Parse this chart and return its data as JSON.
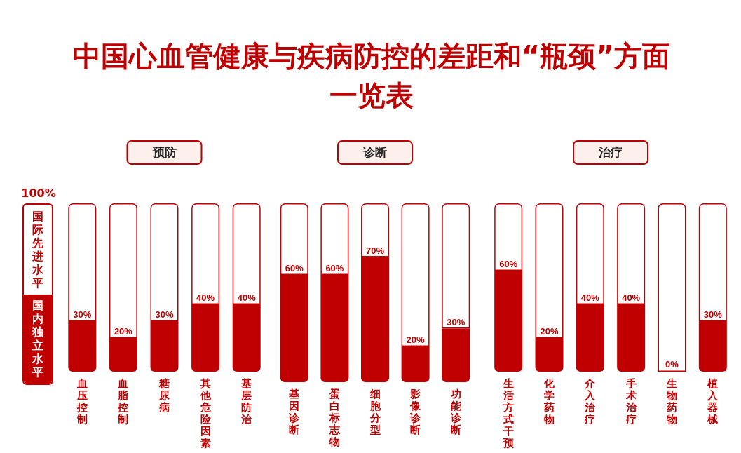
{
  "chart_data": [
    {
      "type": "other",
      "title": "中国心血管健康与疾病防控的差距和“瓶颈”方面一览表",
      "annotations": [
        "100%",
        "国际先进水平",
        "国内独立水平"
      ],
      "color": "#c00000"
    },
    {
      "type": "bar",
      "title": "预防",
      "categories": [
        "血压控制",
        "血脂控制",
        "糖尿病",
        "其他危险因素",
        "基层防治"
      ],
      "stacked": true,
      "tick_labels": "x",
      "series": [
        {
          "color": "#c00000",
          "values": [
            30,
            20,
            30,
            40,
            40
          ],
          "value_labels": [
            "30%",
            "20%",
            "30%",
            "40%",
            "40%"
          ]
        },
        {
          "color": "#ffffff",
          "values": [
            70,
            80,
            70,
            60,
            60
          ]
        }
      ]
    },
    {
      "type": "bar",
      "title": "诊断",
      "categories": [
        "基因诊断",
        "蛋白标志物",
        "细胞分型",
        "影像诊断",
        "功能诊断"
      ],
      "stacked": true,
      "tick_labels": "x",
      "series": [
        {
          "color": "#c00000",
          "values": [
            60,
            60,
            70,
            20,
            30
          ],
          "value_labels": [
            "60%",
            "60%",
            "70%",
            "20%",
            "30%"
          ]
        },
        {
          "color": "#ffffff",
          "values": [
            40,
            40,
            30,
            80,
            70
          ]
        }
      ]
    },
    {
      "type": "bar",
      "title": "治疗",
      "categories": [
        "生活方式干预",
        "化学药物",
        "介入治疗",
        "手术治疗",
        "生物药物",
        "植入器械"
      ],
      "stacked": true,
      "tick_labels": "x",
      "series": [
        {
          "color": "#c00000",
          "values": [
            60,
            20,
            40,
            40,
            0,
            30
          ],
          "value_labels": [
            "60%",
            "20%",
            "40%",
            "40%",
            "0%",
            "30%"
          ]
        },
        {
          "color": "#ffffff",
          "values": [
            40,
            80,
            60,
            60,
            100,
            70
          ]
        }
      ]
    }
  ]
}
